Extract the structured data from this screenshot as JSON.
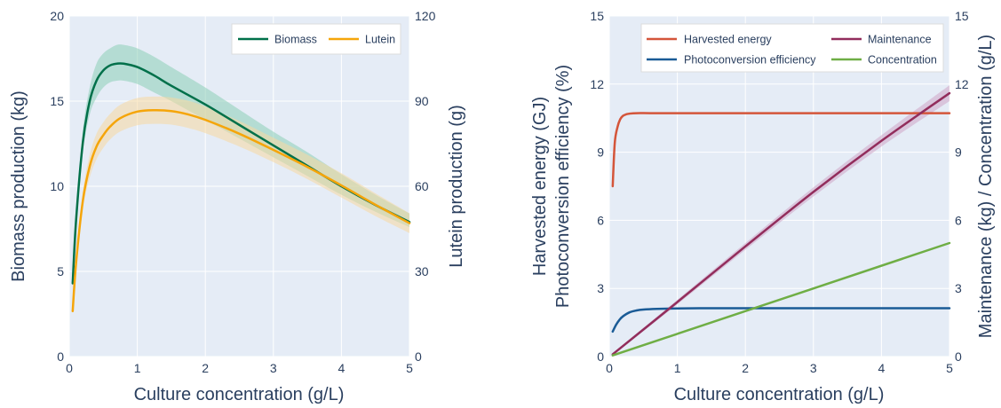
{
  "chart_data": [
    {
      "type": "line",
      "title": "",
      "xlabel": "Culture concentration (g/L)",
      "ylabel": "Biomass production (kg)",
      "y2label": "Lutein production (g)",
      "xlim": [
        0,
        5
      ],
      "ylim": [
        0,
        20
      ],
      "y2lim": [
        0,
        120
      ],
      "x_ticks": [
        "0",
        "1",
        "2",
        "3",
        "4",
        "5"
      ],
      "y_ticks": [
        "0",
        "5",
        "10",
        "15",
        "20"
      ],
      "y2_ticks": [
        "0",
        "30",
        "60",
        "90",
        "120"
      ],
      "grid": true,
      "legend_position": "top-right",
      "series": [
        {
          "name": "Biomass",
          "axis": "y",
          "color": "#00704a",
          "band_color": "#8ccfb6",
          "x": [
            0.05,
            0.1,
            0.2,
            0.3,
            0.4,
            0.5,
            0.6,
            0.7,
            0.8,
            1.0,
            1.25,
            1.5,
            2.0,
            2.5,
            3.0,
            3.5,
            4.0,
            4.5,
            5.0
          ],
          "values": [
            4.3,
            8.0,
            12.6,
            15.0,
            16.2,
            16.8,
            17.1,
            17.2,
            17.2,
            17.0,
            16.5,
            15.9,
            14.8,
            13.6,
            12.4,
            11.2,
            10.0,
            8.9,
            7.9
          ],
          "lower": [
            4.1,
            7.6,
            12.0,
            14.2,
            15.2,
            15.8,
            16.1,
            16.2,
            16.2,
            16.0,
            15.5,
            15.0,
            13.9,
            12.8,
            11.7,
            10.6,
            9.5,
            8.5,
            7.6
          ],
          "upper": [
            4.6,
            8.4,
            13.3,
            15.8,
            17.2,
            17.8,
            18.1,
            18.3,
            18.3,
            18.1,
            17.6,
            17.0,
            15.8,
            14.5,
            13.2,
            12.0,
            10.7,
            9.5,
            8.4
          ]
        },
        {
          "name": "Lutein",
          "axis": "y2",
          "color": "#f5a50a",
          "band_color": "#f7d9a0",
          "x": [
            0.05,
            0.1,
            0.2,
            0.3,
            0.4,
            0.5,
            0.6,
            0.75,
            1.0,
            1.25,
            1.5,
            1.75,
            2.0,
            2.5,
            3.0,
            3.5,
            4.0,
            4.5,
            5.0
          ],
          "values": [
            16,
            33,
            55,
            67,
            74,
            78,
            81,
            84,
            86.3,
            86.8,
            86.5,
            85.3,
            83.4,
            78.5,
            72.8,
            66.8,
            60.3,
            53.5,
            47.0
          ],
          "lower": [
            15,
            31,
            52,
            63,
            69.5,
            73.5,
            76.5,
            79.3,
            81.5,
            82.0,
            81.7,
            80.5,
            78.7,
            74.0,
            68.5,
            62.5,
            56.0,
            49.5,
            43.5
          ],
          "upper": [
            17,
            35,
            58,
            71,
            78.5,
            82.5,
            85.5,
            88.7,
            91.1,
            91.6,
            91.3,
            90.1,
            88.1,
            83.0,
            77.1,
            71.1,
            64.6,
            57.5,
            50.5
          ]
        }
      ]
    },
    {
      "type": "line",
      "title": "",
      "xlabel": "Culture concentration (g/L)",
      "ylabel_lines": [
        "Harvested energy (GJ)",
        "Photoconversion efficiency (%)"
      ],
      "y2label": "Maintenance (kg) / Concentration (g/L)",
      "xlim": [
        0,
        5
      ],
      "ylim": [
        0,
        15
      ],
      "y2lim": [
        0,
        15
      ],
      "x_ticks": [
        "0",
        "1",
        "2",
        "3",
        "4",
        "5"
      ],
      "y_ticks": [
        "0",
        "3",
        "6",
        "9",
        "12",
        "15"
      ],
      "y2_ticks": [
        "0",
        "3",
        "6",
        "9",
        "12",
        "15"
      ],
      "grid": true,
      "legend_position": "top",
      "series": [
        {
          "name": "Harvested energy",
          "axis": "y",
          "color": "#d4553a",
          "x": [
            0.05,
            0.08,
            0.12,
            0.16,
            0.2,
            0.25,
            0.3,
            0.4,
            0.6,
            1.0,
            2.0,
            3.0,
            4.0,
            5.0
          ],
          "values": [
            7.5,
            9.4,
            10.1,
            10.45,
            10.6,
            10.67,
            10.7,
            10.72,
            10.72,
            10.72,
            10.72,
            10.72,
            10.72,
            10.72
          ]
        },
        {
          "name": "Photoconversion efficiency",
          "axis": "y",
          "color": "#1a5b96",
          "x": [
            0.05,
            0.1,
            0.15,
            0.2,
            0.3,
            0.4,
            0.5,
            0.7,
            1.0,
            1.5,
            2.0,
            3.0,
            4.0,
            5.0
          ],
          "values": [
            1.1,
            1.4,
            1.62,
            1.77,
            1.95,
            2.03,
            2.07,
            2.1,
            2.12,
            2.13,
            2.13,
            2.13,
            2.13,
            2.13
          ]
        },
        {
          "name": "Maintenance",
          "axis": "y2",
          "color": "#922d5c",
          "band_color": "#cfa6c6",
          "x": [
            0.05,
            1.0,
            2.0,
            3.0,
            4.0,
            5.0
          ],
          "values": [
            0.1,
            2.4,
            4.85,
            7.25,
            9.5,
            11.6
          ],
          "lower": [
            0.05,
            2.3,
            4.7,
            7.05,
            9.25,
            11.25
          ],
          "upper": [
            0.15,
            2.5,
            5.0,
            7.45,
            9.75,
            11.95
          ]
        },
        {
          "name": "Concentration",
          "axis": "y2",
          "color": "#6fae45",
          "x": [
            0.05,
            5.0
          ],
          "values": [
            0.05,
            5.0
          ]
        }
      ]
    }
  ]
}
